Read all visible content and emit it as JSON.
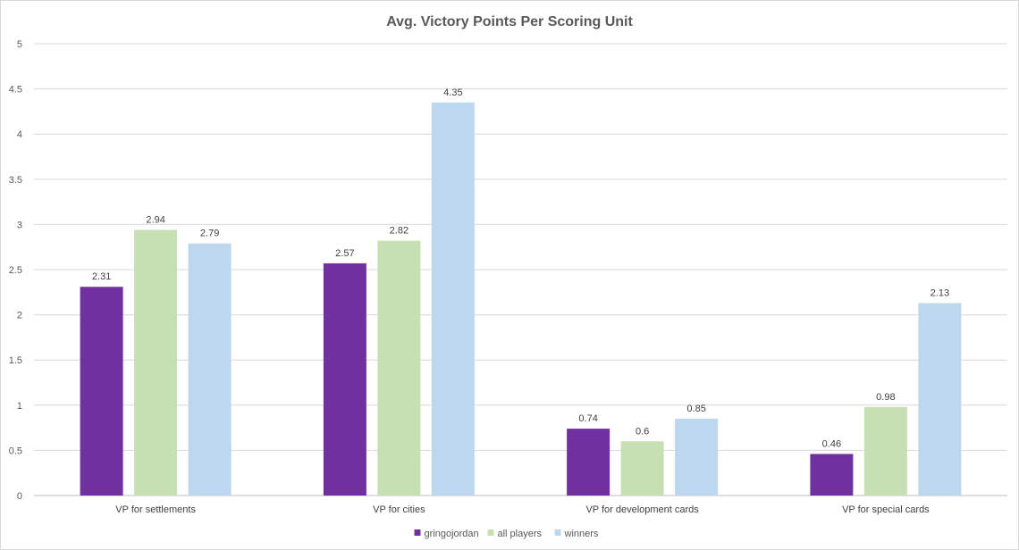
{
  "chart_data": {
    "type": "bar",
    "title": "Avg. Victory Points Per Scoring Unit",
    "categories": [
      "VP for settlements",
      "VP for cities",
      "VP for development cards",
      "VP for special cards"
    ],
    "series": [
      {
        "name": "gringojordan",
        "color": "#7030a0",
        "values": [
          2.31,
          2.57,
          0.74,
          0.46
        ]
      },
      {
        "name": "all players",
        "color": "#c6e0b4",
        "values": [
          2.94,
          2.82,
          0.6,
          0.98
        ]
      },
      {
        "name": "winners",
        "color": "#bdd7ee",
        "values": [
          2.79,
          4.35,
          0.85,
          2.13
        ]
      }
    ],
    "ylim": [
      0,
      5
    ],
    "yticks": [
      "0",
      "0.5",
      "1",
      "1.5",
      "2",
      "2.5",
      "3",
      "3.5",
      "4",
      "4.5",
      "5"
    ],
    "grid": true,
    "legend_position": "bottom"
  }
}
